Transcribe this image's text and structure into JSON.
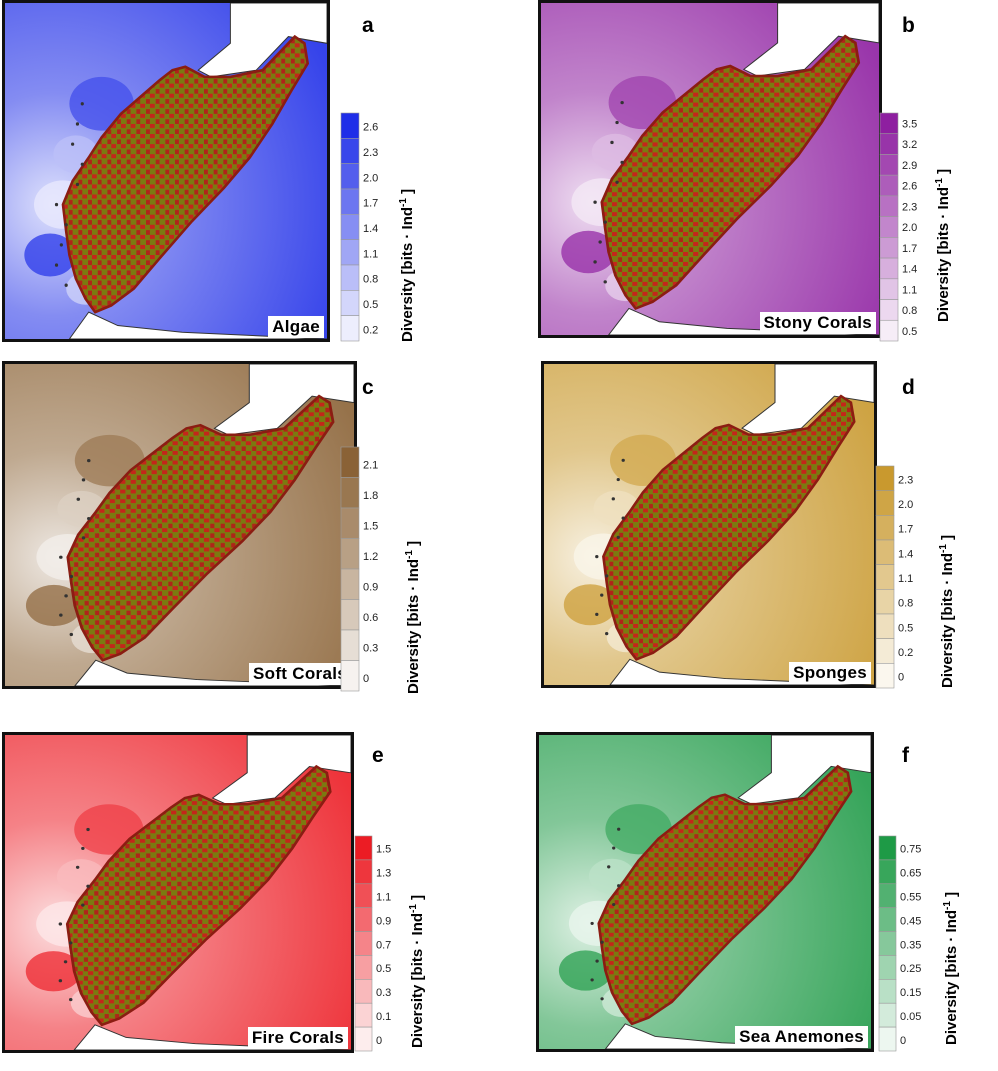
{
  "axis_label": "Diversity [bits · Ind",
  "axis_label_sup": "-1",
  "axis_label_end": " ]",
  "chart_data": [
    {
      "type": "heatmap",
      "panel": "a",
      "title": "Algae",
      "color": "#1f2ee8",
      "ticks": [
        "2.6",
        "2.3",
        "2.0",
        "1.7",
        "1.4",
        "1.1",
        "0.8",
        "0.5",
        "0.2"
      ],
      "range": [
        0.2,
        2.6
      ]
    },
    {
      "type": "heatmap",
      "panel": "b",
      "title": "Stony Corals",
      "color": "#8e1fa0",
      "ticks": [
        "3.5",
        "3.2",
        "2.9",
        "2.6",
        "2.3",
        "2.0",
        "1.7",
        "1.4",
        "1.1",
        "0.8",
        "0.5"
      ],
      "range": [
        0.5,
        3.5
      ]
    },
    {
      "type": "heatmap",
      "panel": "c",
      "title": "Soft Corals",
      "color": "#8a6236",
      "ticks": [
        "2.1",
        "1.8",
        "1.5",
        "1.2",
        "0.9",
        "0.6",
        "0.3",
        "0"
      ],
      "range": [
        0,
        2.1
      ]
    },
    {
      "type": "heatmap",
      "panel": "d",
      "title": "Sponges",
      "color": "#c9992e",
      "ticks": [
        "2.3",
        "2.0",
        "1.7",
        "1.4",
        "1.1",
        "0.8",
        "0.5",
        "0.2",
        "0"
      ],
      "range": [
        0,
        2.3
      ]
    },
    {
      "type": "heatmap",
      "panel": "e",
      "title": "Fire Corals",
      "color": "#ec1c24",
      "ticks": [
        "1.5",
        "1.3",
        "1.1",
        "0.9",
        "0.7",
        "0.5",
        "0.3",
        "0.1",
        "0"
      ],
      "range": [
        0,
        1.5
      ]
    },
    {
      "type": "heatmap",
      "panel": "f",
      "title": "Sea Anemones",
      "color": "#1e9a46",
      "ticks": [
        "0.75",
        "0.65",
        "0.55",
        "0.45",
        "0.35",
        "0.25",
        "0.15",
        "0.05",
        "0"
      ],
      "range": [
        0,
        0.75
      ]
    }
  ]
}
